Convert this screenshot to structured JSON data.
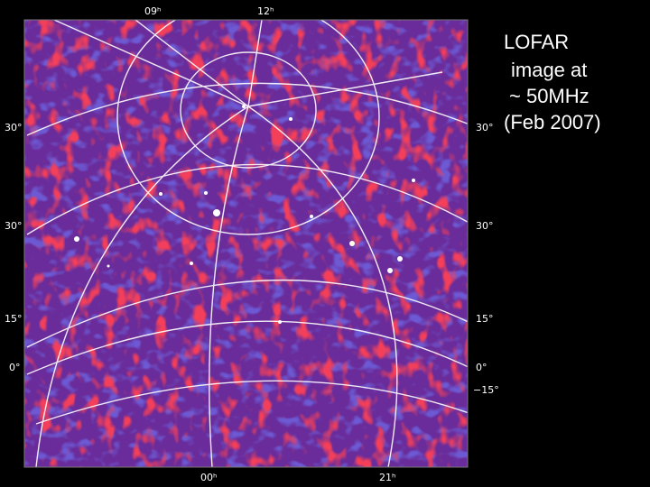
{
  "caption": [
    "LOFAR",
    "image at",
    "~ 50MHz",
    "(Feb 2007)"
  ],
  "image_labels": {
    "top": [
      "09ʰ",
      "12ʰ"
    ],
    "left": [
      "30°",
      "30°",
      "15°",
      "0°"
    ],
    "right": [
      "30°",
      "30°",
      "15°",
      "0°",
      "−15°"
    ],
    "bottom": [
      "00ʰ",
      "21ʰ"
    ]
  }
}
